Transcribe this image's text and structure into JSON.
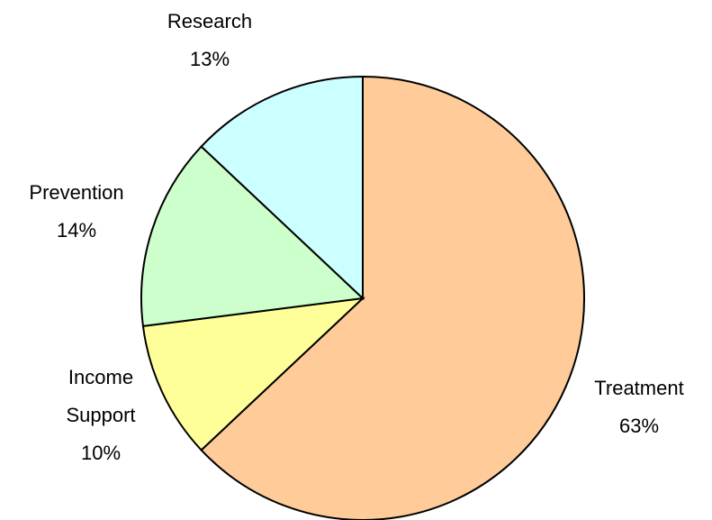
{
  "chart_data": {
    "type": "pie",
    "categories": [
      "Treatment",
      "Income Support",
      "Prevention",
      "Research"
    ],
    "values": [
      63,
      10,
      14,
      13
    ],
    "value_labels": [
      "63%",
      "10%",
      "14%",
      "13%"
    ],
    "colors": [
      "#ffcc99",
      "#ffff99",
      "#ccffcc",
      "#ccffff"
    ]
  }
}
